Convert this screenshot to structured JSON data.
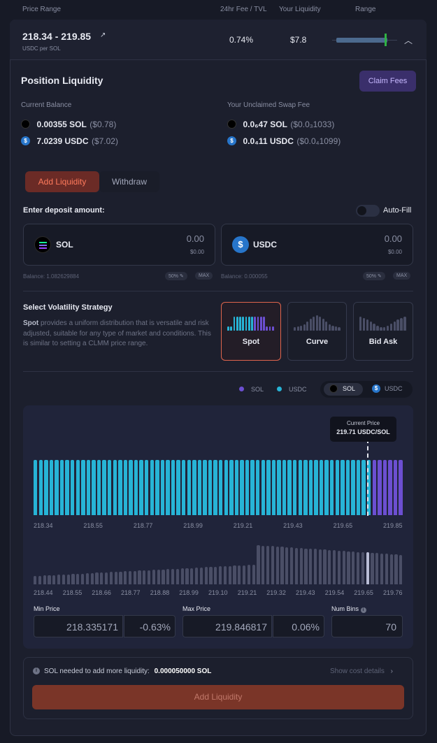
{
  "header": {
    "price_range": "Price Range",
    "fee_tvl": "24hr Fee / TVL",
    "your_liquidity": "Your Liquidity",
    "range": "Range"
  },
  "position": {
    "range": "218.34 - 219.85",
    "unit": "USDC per SOL",
    "fee_tvl": "0.74%",
    "liquidity": "$7.8"
  },
  "liquidity_section": {
    "title": "Position Liquidity",
    "claim_label": "Claim Fees",
    "current_balance_label": "Current Balance",
    "sol_amount": "0.00355 SOL",
    "sol_value": "($0.78)",
    "usdc_amount": "7.0239 USDC",
    "usdc_value": "($7.02)",
    "unclaimed_label": "Your Unclaimed Swap Fee",
    "fee_sol_amount": "0.0₆47 SOL",
    "fee_sol_value": "($0.0₃1033)",
    "fee_usdc_amount": "0.0₄11 USDC",
    "fee_usdc_value": "($0.0₄1099)"
  },
  "tabs": {
    "add": "Add Liquidity",
    "withdraw": "Withdraw"
  },
  "deposit": {
    "label": "Enter deposit amount:",
    "autofill": "Auto-Fill",
    "sol_symbol": "SOL",
    "sol_amount": "0.00",
    "sol_value": "$0.00",
    "sol_balance": "Balance: 1.082629884",
    "usdc_symbol": "USDC",
    "usdc_amount": "0.00",
    "usdc_value": "$0.00",
    "usdc_balance": "Balance: 0.000055",
    "half": "50%",
    "max": "MAX"
  },
  "strategy": {
    "title": "Select Volatility Strategy",
    "desc_bold": "Spot",
    "desc": " provides a uniform distribution that is versatile and risk adjusted, suitable for any type of market and conditions. This is similar to setting a CLMM price range.",
    "options": [
      "Spot",
      "Curve",
      "Bid Ask"
    ]
  },
  "legend": {
    "sol": "SOL",
    "usdc": "USDC",
    "toggle_sol": "SOL",
    "toggle_usdc": "USDC"
  },
  "current_price": {
    "label": "Current Price",
    "value": "219.71 USDC/SOL"
  },
  "chart_data": {
    "type": "bar",
    "top_ticks": [
      "218.34",
      "218.55",
      "218.77",
      "218.99",
      "219.21",
      "219.43",
      "219.65",
      "219.85"
    ],
    "bottom_ticks": [
      "218.44",
      "218.55",
      "218.66",
      "218.77",
      "218.88",
      "218.99",
      "219.10",
      "219.21",
      "219.32",
      "219.43",
      "219.54",
      "219.65",
      "219.76"
    ],
    "num_bins": 70,
    "usdc_bins": 64,
    "sol_bins": 6,
    "colors": {
      "usdc": "#27b4d6",
      "sol": "#6c4fd1"
    }
  },
  "range_inputs": {
    "min_label": "Min Price",
    "min_value": "218.335171",
    "min_pct": "-0.63%",
    "max_label": "Max Price",
    "max_value": "219.846817",
    "max_pct": "0.06%",
    "bins_label": "Num Bins",
    "bins_value": "70"
  },
  "footer": {
    "needed_label": "SOL needed to add more liquidity:",
    "needed_value": "0.000050000 SOL",
    "cost_details": "Show cost details",
    "submit": "Add Liquidity"
  }
}
